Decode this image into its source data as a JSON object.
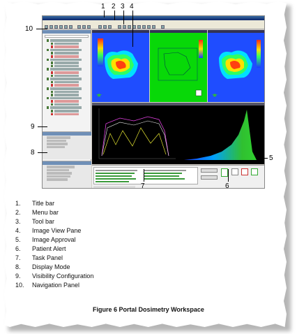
{
  "figure": {
    "caption": "Figure 6 Portal Dosimetry Workspace",
    "callouts": [
      "1",
      "2",
      "3",
      "4",
      "5",
      "6",
      "7",
      "8",
      "9",
      "10"
    ],
    "legend": [
      {
        "num": "1.",
        "label": "Title bar"
      },
      {
        "num": "2.",
        "label": "Menu bar"
      },
      {
        "num": "3.",
        "label": "Tool bar"
      },
      {
        "num": "4.",
        "label": "Image View Pane"
      },
      {
        "num": "5.",
        "label": "Image Approval"
      },
      {
        "num": "6.",
        "label": "Patient Alert"
      },
      {
        "num": "7.",
        "label": "Task Panel"
      },
      {
        "num": "8.",
        "label": "Display Mode"
      },
      {
        "num": "9.",
        "label": "Visibility Configuration"
      },
      {
        "num": "10.",
        "label": "Navigation Panel"
      }
    ]
  },
  "colors": {
    "accent": "#0a246a",
    "dose_low": "#1a3cff",
    "dose_high": "#ff2a1a",
    "green_panel": "#00d000"
  }
}
